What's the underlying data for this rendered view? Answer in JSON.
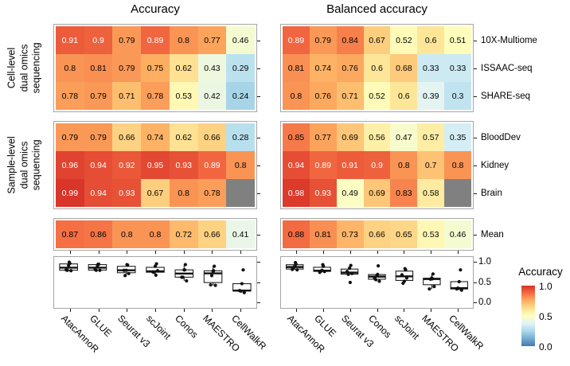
{
  "titles": {
    "left_panel": "Accuracy",
    "right_panel": "Balanced accuracy"
  },
  "row_groups": [
    {
      "label_lines": [
        "Cell-level",
        "dual omics",
        "sequencing"
      ],
      "rows": [
        "10X-Multiome",
        "ISSAAC-seq",
        "SHARE-seq"
      ]
    },
    {
      "label_lines": [
        "Sample-level",
        "dual omics",
        "sequencing"
      ],
      "rows": [
        "BloodDev",
        "Kidney",
        "Brain"
      ]
    },
    {
      "label_lines": [],
      "rows": [
        "Mean"
      ]
    }
  ],
  "legend": {
    "title": "Accuracy",
    "tick_labels": [
      "1.0",
      "0.5",
      "0.0"
    ]
  },
  "boxplot_axis": {
    "tick_labels": [
      "1.0",
      "0.5",
      "0.0"
    ],
    "tick_values": [
      1,
      0.5,
      0
    ]
  },
  "colors": {
    "na_cell": "#808080",
    "panel_border": "#a6a6a6",
    "tick": "#1a1a1a",
    "text_dark": "#000000",
    "text_light": "#ffffff",
    "colormap": [
      [
        0,
        "#4575B4"
      ],
      [
        0.125,
        "#74ADD1"
      ],
      [
        0.25,
        "#ABD9E9"
      ],
      [
        0.375,
        "#E0F3F8"
      ],
      [
        0.5,
        "#FFFFBF"
      ],
      [
        0.625,
        "#FEE090"
      ],
      [
        0.75,
        "#FDAE61"
      ],
      [
        0.875,
        "#F46D43"
      ],
      [
        1,
        "#D73027"
      ]
    ]
  },
  "chart_data": [
    {
      "type": "heatmap",
      "title": "Accuracy",
      "columns": [
        "AtacAnnoR",
        "GLUE",
        "Seurat v3",
        "scJoint",
        "Conos",
        "MAESTRO",
        "CellWalkR"
      ],
      "rows": [
        "10X-Multiome",
        "ISSAAC-seq",
        "SHARE-seq",
        "BloodDev",
        "Kidney",
        "Brain",
        "Mean"
      ],
      "values": [
        [
          0.91,
          0.9,
          0.79,
          0.89,
          0.8,
          0.77,
          0.46
        ],
        [
          0.8,
          0.81,
          0.79,
          0.75,
          0.62,
          0.43,
          0.29
        ],
        [
          0.78,
          0.79,
          0.71,
          0.78,
          0.53,
          0.42,
          0.24
        ],
        [
          0.79,
          0.79,
          0.66,
          0.74,
          0.62,
          0.66,
          0.28
        ],
        [
          0.96,
          0.94,
          0.92,
          0.95,
          0.93,
          0.89,
          0.8
        ],
        [
          0.99,
          0.94,
          0.93,
          0.67,
          0.8,
          0.78,
          null
        ],
        [
          0.87,
          0.86,
          0.8,
          0.8,
          0.72,
          0.66,
          0.41
        ]
      ]
    },
    {
      "type": "heatmap",
      "title": "Balanced accuracy",
      "columns": [
        "AtacAnnoR",
        "GLUE",
        "Seurat v3",
        "Conos",
        "scJoint",
        "MAESTRO",
        "CellWalkR"
      ],
      "rows": [
        "10X-Multiome",
        "ISSAAC-seq",
        "SHARE-seq",
        "BloodDev",
        "Kidney",
        "Brain",
        "Mean"
      ],
      "values": [
        [
          0.89,
          0.79,
          0.84,
          0.67,
          0.52,
          0.6,
          0.51
        ],
        [
          0.81,
          0.74,
          0.76,
          0.6,
          0.68,
          0.33,
          0.33
        ],
        [
          0.8,
          0.76,
          0.71,
          0.52,
          0.6,
          0.39,
          0.3
        ],
        [
          0.85,
          0.77,
          0.69,
          0.56,
          0.47,
          0.57,
          0.35
        ],
        [
          0.94,
          0.89,
          0.91,
          0.9,
          0.8,
          0.7,
          0.8
        ],
        [
          0.98,
          0.93,
          0.49,
          0.69,
          0.83,
          0.58,
          null
        ],
        [
          0.88,
          0.81,
          0.73,
          0.66,
          0.65,
          0.53,
          0.46
        ]
      ]
    },
    {
      "type": "boxplot",
      "panel": "Accuracy",
      "ylim": [
        0,
        1
      ],
      "yticks": [
        0,
        0.5,
        1
      ],
      "categories": [
        "AtacAnnoR",
        "GLUE",
        "Seurat v3",
        "scJoint",
        "Conos",
        "MAESTRO",
        "CellWalkR"
      ],
      "values": [
        [
          0.91,
          0.8,
          0.78,
          0.79,
          0.96,
          0.99
        ],
        [
          0.9,
          0.81,
          0.79,
          0.79,
          0.94,
          0.94
        ],
        [
          0.79,
          0.79,
          0.71,
          0.66,
          0.92,
          0.93
        ],
        [
          0.89,
          0.75,
          0.78,
          0.74,
          0.95,
          0.67
        ],
        [
          0.8,
          0.62,
          0.53,
          0.62,
          0.93,
          0.8
        ],
        [
          0.77,
          0.43,
          0.42,
          0.66,
          0.89,
          0.78
        ],
        [
          0.46,
          0.29,
          0.24,
          0.28,
          0.8
        ]
      ]
    },
    {
      "type": "boxplot",
      "panel": "Balanced accuracy",
      "ylim": [
        0,
        1
      ],
      "yticks": [
        0,
        0.5,
        1
      ],
      "categories": [
        "AtacAnnoR",
        "GLUE",
        "Seurat v3",
        "Conos",
        "scJoint",
        "MAESTRO",
        "CellWalkR"
      ],
      "values": [
        [
          0.89,
          0.81,
          0.8,
          0.85,
          0.94,
          0.98
        ],
        [
          0.79,
          0.74,
          0.76,
          0.77,
          0.89,
          0.93
        ],
        [
          0.84,
          0.76,
          0.71,
          0.69,
          0.91,
          0.49
        ],
        [
          0.67,
          0.6,
          0.52,
          0.56,
          0.9,
          0.69
        ],
        [
          0.52,
          0.68,
          0.6,
          0.47,
          0.8,
          0.83
        ],
        [
          0.6,
          0.33,
          0.39,
          0.57,
          0.7,
          0.58
        ],
        [
          0.51,
          0.33,
          0.3,
          0.35,
          0.8
        ]
      ]
    }
  ]
}
